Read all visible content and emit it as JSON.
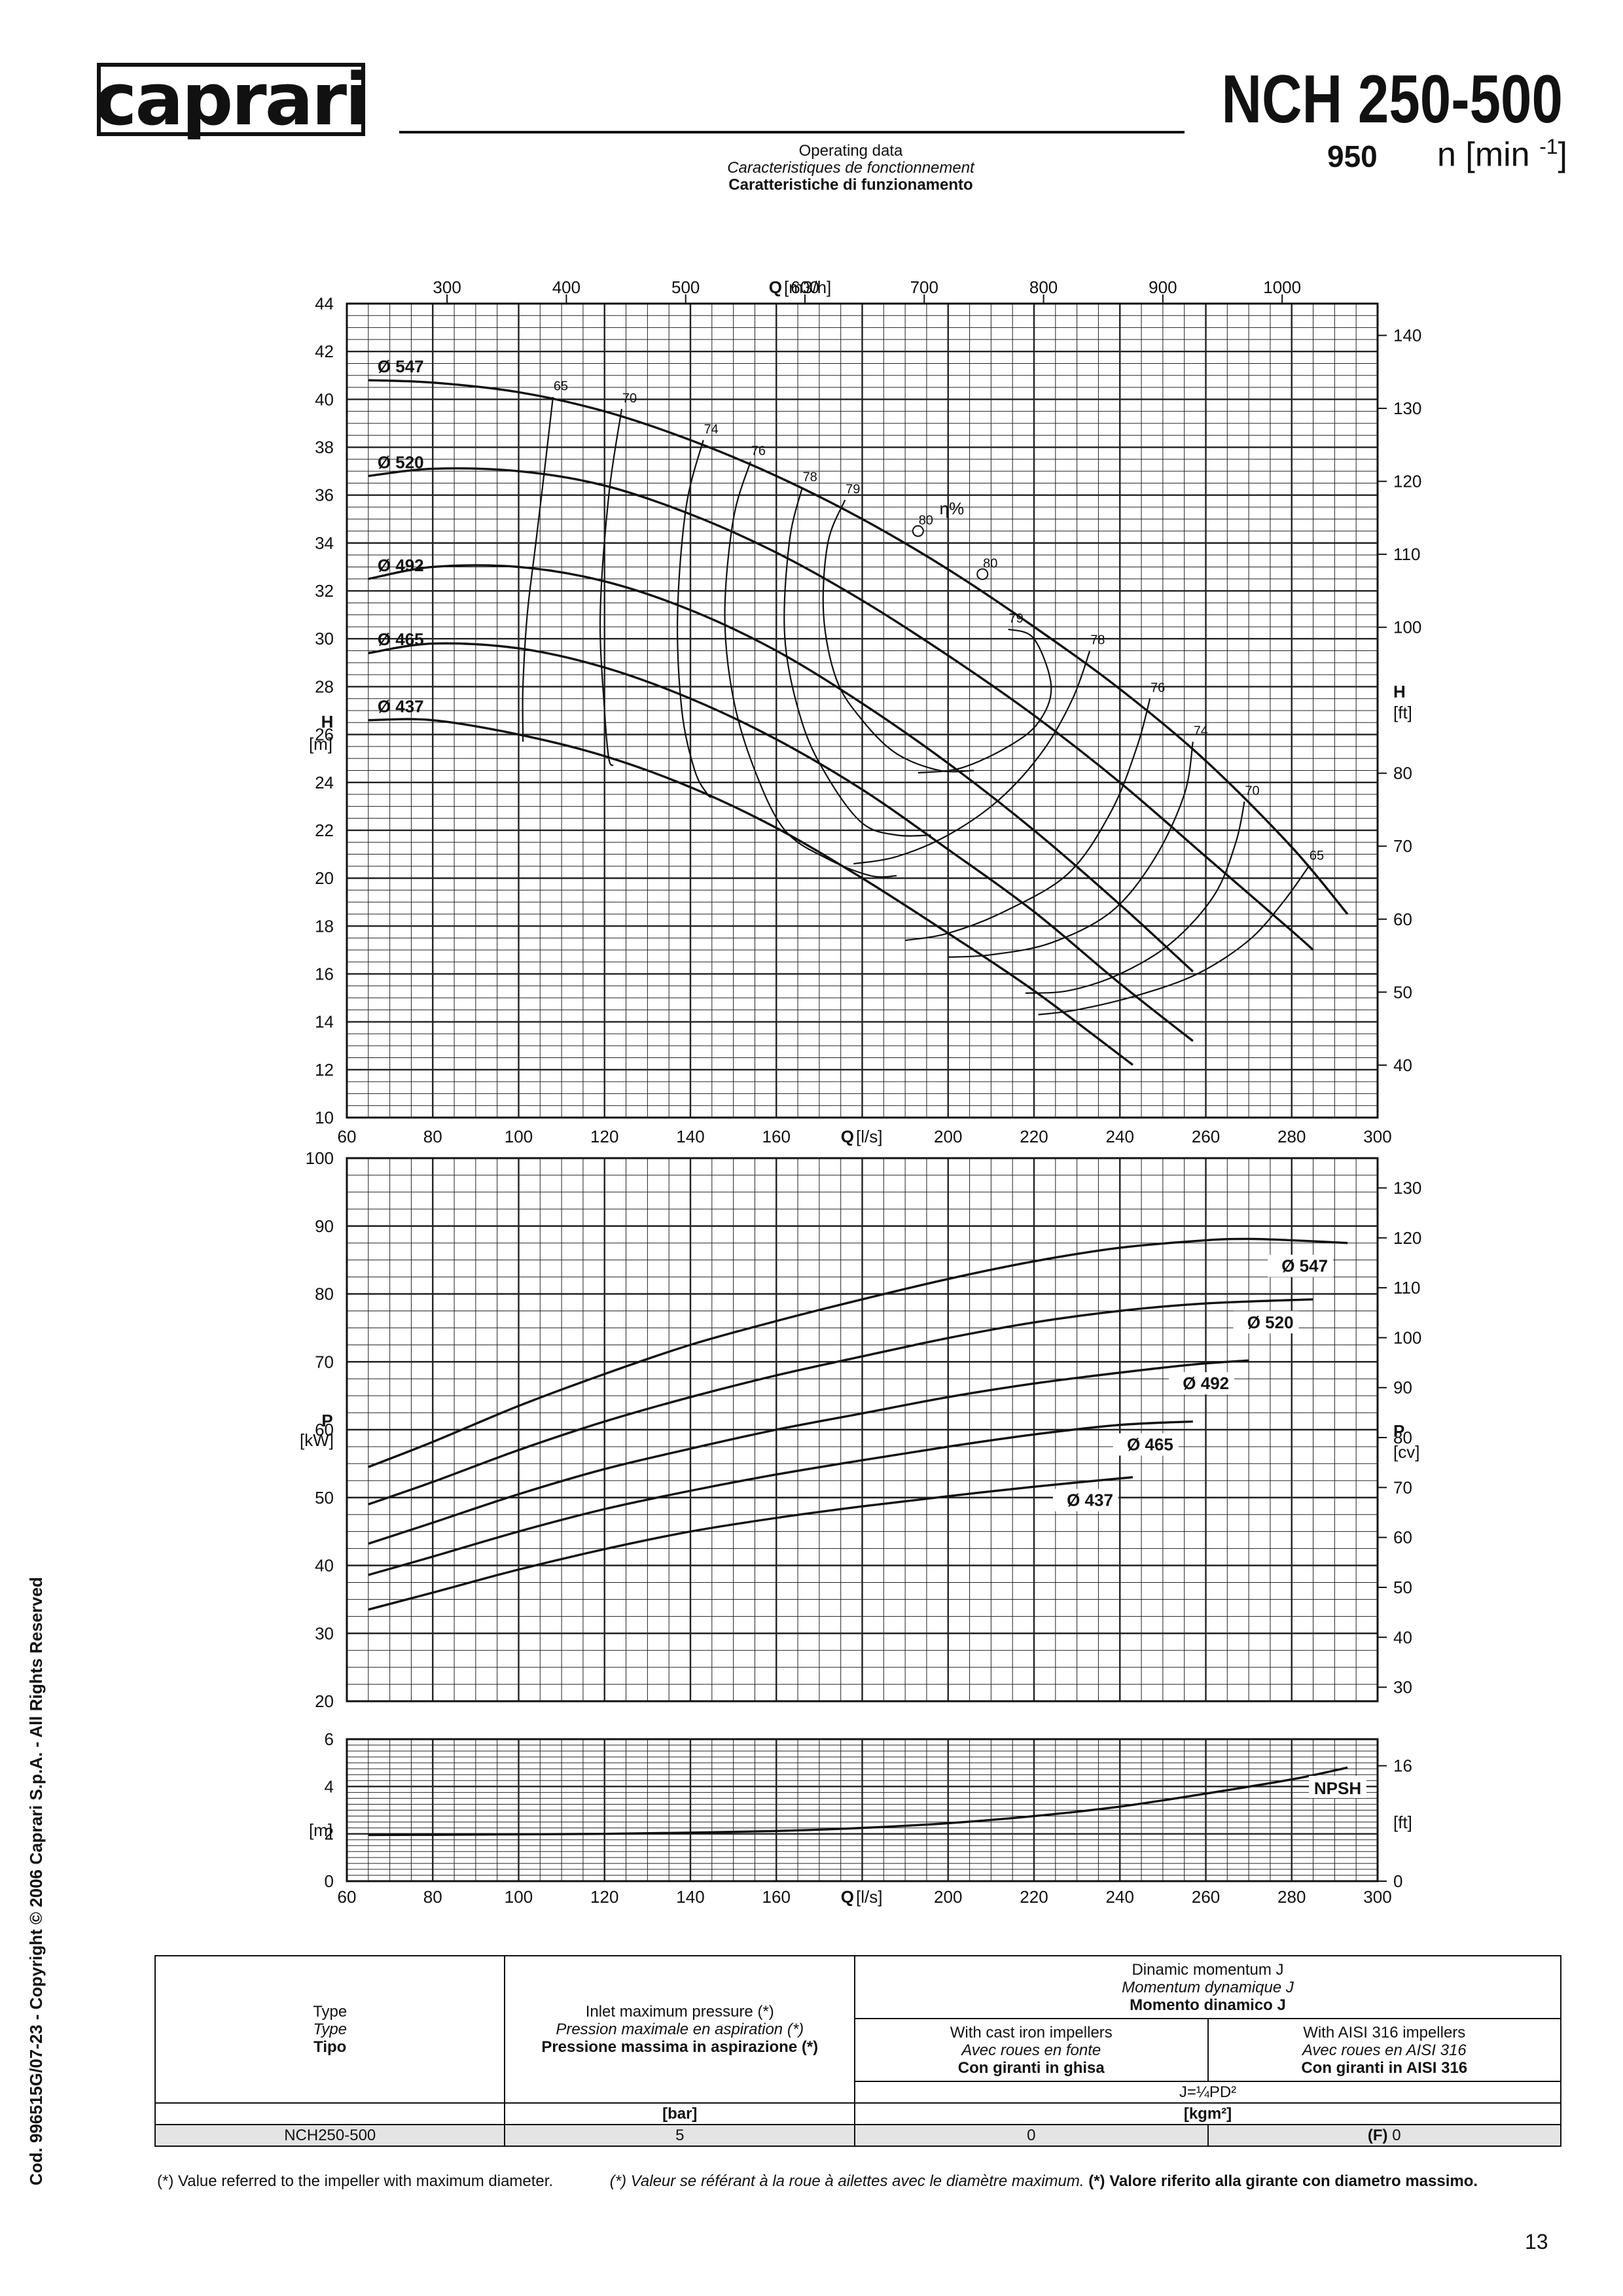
{
  "header": {
    "logo_text": "caprari",
    "model": "NCH 250-500",
    "speed": "950",
    "speed_unit_base": "n [min",
    "speed_unit_sup": "-1",
    "speed_unit_end": "]",
    "operating_data_en": "Operating data",
    "operating_data_fr": "Caracteristiques de fonctionnement",
    "operating_data_it": "Caratteristiche di funzionamento"
  },
  "chart_data": [
    {
      "type": "line",
      "name": "head",
      "x_label_lps": "[l/s]",
      "x_label_m3h": "[m3/h]",
      "x_symbol": "Q",
      "xlim": [
        60,
        300
      ],
      "ylim": [
        10,
        44
      ],
      "y_symbol": "H",
      "y_unit": "[m]",
      "y2_unit": "[ft]",
      "x_ticks": [
        60,
        80,
        100,
        120,
        140,
        160,
        180,
        200,
        220,
        240,
        260,
        280,
        300
      ],
      "x_m3h_ticks": [
        300,
        400,
        500,
        600,
        700,
        800,
        900,
        1000
      ],
      "y_ticks": [
        10,
        12,
        14,
        16,
        18,
        20,
        22,
        24,
        26,
        28,
        30,
        32,
        34,
        36,
        38,
        40,
        42,
        44
      ],
      "y2_ticks": [
        40,
        50,
        60,
        70,
        80,
        100,
        110,
        120,
        130,
        140
      ],
      "eta_label": "η%",
      "series": [
        {
          "name": "Ø 547",
          "x": [
            65,
            80,
            100,
            120,
            140,
            160,
            180,
            200,
            220,
            240,
            260,
            280,
            293
          ],
          "y": [
            40.8,
            40.7,
            40.3,
            39.5,
            38.3,
            36.8,
            35.0,
            32.9,
            30.5,
            27.9,
            24.9,
            21.3,
            18.5
          ]
        },
        {
          "name": "Ø 520",
          "x": [
            65,
            80,
            100,
            120,
            140,
            160,
            180,
            200,
            220,
            240,
            260,
            280,
            285
          ],
          "y": [
            36.8,
            37.1,
            37.0,
            36.4,
            35.2,
            33.6,
            31.6,
            29.3,
            26.8,
            24.0,
            20.9,
            17.8,
            17.0
          ]
        },
        {
          "name": "Ø 492",
          "x": [
            65,
            80,
            100,
            120,
            140,
            160,
            180,
            200,
            220,
            240,
            257
          ],
          "y": [
            32.5,
            33.0,
            33.0,
            32.4,
            31.2,
            29.5,
            27.3,
            24.8,
            22.0,
            18.9,
            16.1
          ]
        },
        {
          "name": "Ø 465",
          "x": [
            65,
            80,
            100,
            120,
            140,
            160,
            180,
            200,
            220,
            240,
            257
          ],
          "y": [
            29.4,
            29.8,
            29.6,
            28.8,
            27.5,
            25.8,
            23.7,
            21.2,
            18.6,
            15.6,
            13.2
          ]
        },
        {
          "name": "Ø 437",
          "x": [
            65,
            80,
            100,
            120,
            140,
            160,
            180,
            200,
            220,
            243
          ],
          "y": [
            26.6,
            26.6,
            26.0,
            25.1,
            23.8,
            22.1,
            20.0,
            17.7,
            15.3,
            12.2
          ]
        }
      ],
      "efficiency_curves": [
        {
          "label": "65",
          "x": [
            108,
            106,
            104,
            102,
            101,
            101,
            101
          ],
          "y": [
            40.1,
            37.0,
            34.0,
            31.0,
            28.0,
            26.0,
            25.7
          ]
        },
        {
          "label": "70",
          "x": [
            124,
            121,
            119,
            120,
            121,
            122
          ],
          "y": [
            39.6,
            36.0,
            31.0,
            27.0,
            25.0,
            24.7
          ]
        },
        {
          "label": "74",
          "x": [
            143,
            139,
            137,
            138,
            141,
            144,
            145
          ],
          "y": [
            38.3,
            35.5,
            31.0,
            27.0,
            24.5,
            23.5,
            23.4
          ]
        },
        {
          "label": "76",
          "x": [
            154,
            150,
            148,
            150,
            155,
            162,
            172,
            182,
            188
          ],
          "y": [
            37.4,
            35.0,
            31.0,
            27.5,
            24.5,
            22.0,
            20.8,
            20.1,
            20.1
          ]
        },
        {
          "label": "78",
          "x": [
            166,
            163,
            162,
            166,
            172,
            180,
            188,
            196
          ],
          "y": [
            36.3,
            34.0,
            30.0,
            26.5,
            24.2,
            22.3,
            21.8,
            21.8
          ]
        },
        {
          "label": "79",
          "x": [
            176,
            172,
            171,
            174,
            180,
            188,
            198,
            206
          ],
          "y": [
            35.8,
            34.0,
            31.0,
            28.3,
            26.6,
            25.2,
            24.5,
            24.5
          ]
        },
        {
          "label": "80",
          "x": [
            193
          ],
          "y": [
            34.5
          ]
        },
        {
          "label": "80",
          "x": [
            208
          ],
          "y": [
            32.7
          ]
        },
        {
          "label": "79",
          "x": [
            214,
            220,
            224,
            221,
            214,
            203,
            193
          ],
          "y": [
            30.4,
            30.0,
            28.0,
            26.5,
            25.5,
            24.6,
            24.4
          ]
        },
        {
          "label": "78",
          "x": [
            233,
            229,
            222,
            212,
            200,
            188,
            178
          ],
          "y": [
            29.5,
            27.5,
            25.3,
            23.3,
            21.8,
            20.9,
            20.6
          ]
        },
        {
          "label": "76",
          "x": [
            247,
            244,
            238,
            228,
            213,
            200,
            190
          ],
          "y": [
            27.5,
            25.5,
            22.8,
            20.2,
            18.6,
            17.7,
            17.4
          ]
        },
        {
          "label": "74",
          "x": [
            257,
            255,
            248,
            238,
            224,
            210,
            200
          ],
          "y": [
            25.7,
            23.5,
            20.8,
            18.6,
            17.3,
            16.8,
            16.7
          ]
        },
        {
          "label": "70",
          "x": [
            269,
            267,
            262,
            252,
            240,
            228,
            218
          ],
          "y": [
            23.2,
            21.5,
            19.3,
            17.3,
            16.0,
            15.3,
            15.2
          ]
        },
        {
          "label": "65",
          "x": [
            284,
            278,
            270,
            258,
            244,
            230,
            221
          ],
          "y": [
            20.5,
            19.0,
            17.4,
            16.0,
            15.1,
            14.5,
            14.3
          ]
        }
      ],
      "eta_markers": [
        {
          "x": 193,
          "y": 34.5
        },
        {
          "x": 208,
          "y": 32.7
        }
      ]
    },
    {
      "type": "line",
      "name": "power",
      "xlim": [
        60,
        300
      ],
      "ylim": [
        20,
        100
      ],
      "y_symbol": "P",
      "y_unit": "[kW]",
      "y2_symbol": "P",
      "y2_unit": "[cv]",
      "y_ticks": [
        20,
        30,
        40,
        50,
        60,
        70,
        80,
        90,
        100
      ],
      "y2_ticks": [
        30,
        40,
        50,
        60,
        70,
        80,
        90,
        100,
        110,
        120,
        130
      ],
      "series": [
        {
          "name": "Ø 547",
          "x": [
            65,
            80,
            100,
            120,
            140,
            160,
            180,
            200,
            220,
            240,
            260,
            270,
            280,
            293
          ],
          "y": [
            54.5,
            58.2,
            63.5,
            68.2,
            72.5,
            76.0,
            79.2,
            82.2,
            84.8,
            86.8,
            87.9,
            88.1,
            87.9,
            87.5
          ]
        },
        {
          "name": "Ø 520",
          "x": [
            65,
            80,
            100,
            120,
            140,
            160,
            180,
            200,
            220,
            240,
            260,
            285
          ],
          "y": [
            49.0,
            52.3,
            57.0,
            61.2,
            64.8,
            68.0,
            70.8,
            73.5,
            75.8,
            77.5,
            78.6,
            79.2
          ]
        },
        {
          "name": "Ø 492",
          "x": [
            65,
            80,
            100,
            120,
            140,
            160,
            180,
            200,
            220,
            240,
            257,
            270
          ],
          "y": [
            43.2,
            46.3,
            50.5,
            54.2,
            57.2,
            60.0,
            62.4,
            64.8,
            66.8,
            68.4,
            69.6,
            70.2
          ]
        },
        {
          "name": "Ø 465",
          "x": [
            65,
            80,
            100,
            120,
            140,
            160,
            180,
            200,
            220,
            240,
            257
          ],
          "y": [
            38.6,
            41.3,
            45.0,
            48.3,
            51.0,
            53.4,
            55.5,
            57.5,
            59.3,
            60.7,
            61.2
          ]
        },
        {
          "name": "Ø 437",
          "x": [
            65,
            80,
            100,
            120,
            140,
            160,
            180,
            200,
            220,
            243
          ],
          "y": [
            33.5,
            36.0,
            39.4,
            42.4,
            45.0,
            47.0,
            48.7,
            50.2,
            51.6,
            53.0
          ]
        }
      ]
    },
    {
      "type": "line",
      "name": "npsh",
      "xlim": [
        60,
        300
      ],
      "ylim": [
        0,
        6
      ],
      "y_unit": "[m]",
      "y2_unit": "[ft]",
      "series_label": "NPSH",
      "x_ticks": [
        60,
        80,
        100,
        120,
        140,
        160,
        180,
        200,
        220,
        240,
        260,
        280,
        300
      ],
      "y_ticks": [
        0,
        2,
        4,
        6
      ],
      "y2_ticks": [
        0,
        16
      ],
      "x_symbol": "Q",
      "x_label_lps": "[l/s]",
      "series": [
        {
          "name": "NPSH",
          "x": [
            65,
            80,
            100,
            120,
            140,
            160,
            180,
            200,
            220,
            240,
            260,
            280,
            293
          ],
          "y": [
            1.95,
            1.96,
            1.98,
            2.0,
            2.05,
            2.12,
            2.25,
            2.45,
            2.75,
            3.15,
            3.7,
            4.3,
            4.8
          ]
        }
      ]
    }
  ],
  "table": {
    "type_en": "Type",
    "type_fr": "Type",
    "type_it": "Tipo",
    "inlet_en": "Inlet maximum pressure (*)",
    "inlet_fr": "Pression maximale en aspiration (*)",
    "inlet_it": "Pressione massima in aspirazione (*)",
    "moment_en": "Dinamic momentum J",
    "moment_fr": "Momentum dynamique J",
    "moment_it": "Momento dinamico J",
    "cast_en": "With cast iron impellers",
    "cast_fr": "Avec roues en fonte",
    "cast_it": "Con giranti in ghisa",
    "aisi_en": "With AISI 316 impellers",
    "aisi_fr": "Avec roues en AISI 316",
    "aisi_it": "Con giranti in AISI 316",
    "formula": "J=¼PD²",
    "unit_bar": "[bar]",
    "unit_kgm2": "[kgm²]",
    "row_type": "NCH250-500",
    "row_pressure": "5",
    "row_cast": "0",
    "row_aisi_prefix": "(F)",
    "row_aisi": "0"
  },
  "footnote": {
    "en": "(*) Value referred to the impeller with maximum diameter.",
    "fr": "(*) Valeur se référant à la roue à ailettes avec le diamètre maximum.",
    "it": "(*) Valore riferito alla girante con diametro massimo."
  },
  "copyright": "Cod. 996515G/07-23 - Copyright © 2006 Caprari S.p.A. - All Rights Reserved",
  "page_number": "13"
}
